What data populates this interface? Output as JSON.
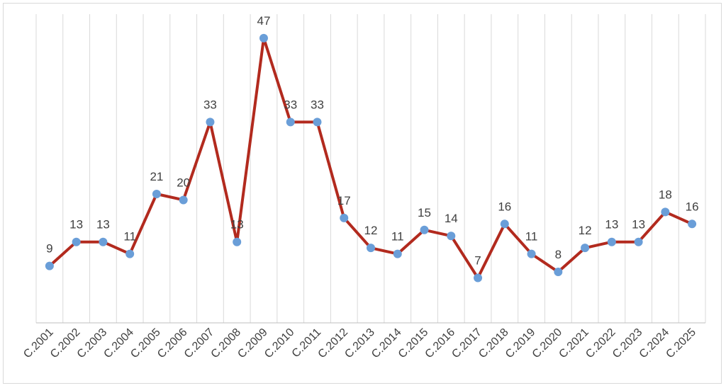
{
  "chart_data": {
    "type": "line",
    "title": "",
    "xlabel": "",
    "ylabel": "",
    "categories": [
      "C.2001",
      "C.2002",
      "C.2003",
      "C.2004",
      "C.2005",
      "C.2006",
      "C.2007",
      "C.2008",
      "C.2009",
      "C.2010",
      "C.2011",
      "C.2012",
      "C.2013",
      "C.2014",
      "C.2015",
      "C.2016",
      "C.2017",
      "C.2018",
      "C.2019",
      "C.2020",
      "C.2021",
      "C.2022",
      "C.2023",
      "C.2024",
      "C.2025"
    ],
    "series": [
      {
        "values": [
          9,
          13,
          13,
          11,
          21,
          20,
          33,
          13,
          47,
          33,
          33,
          17,
          12,
          11,
          15,
          14,
          7,
          16,
          11,
          8,
          12,
          13,
          13,
          18,
          16
        ],
        "line_color": "#b22a1e",
        "marker_color": "#6a9ed8"
      }
    ],
    "ylim": [
      -0.5,
      51
    ],
    "grid": "vertical",
    "legend": "none",
    "data_labels": true
  }
}
